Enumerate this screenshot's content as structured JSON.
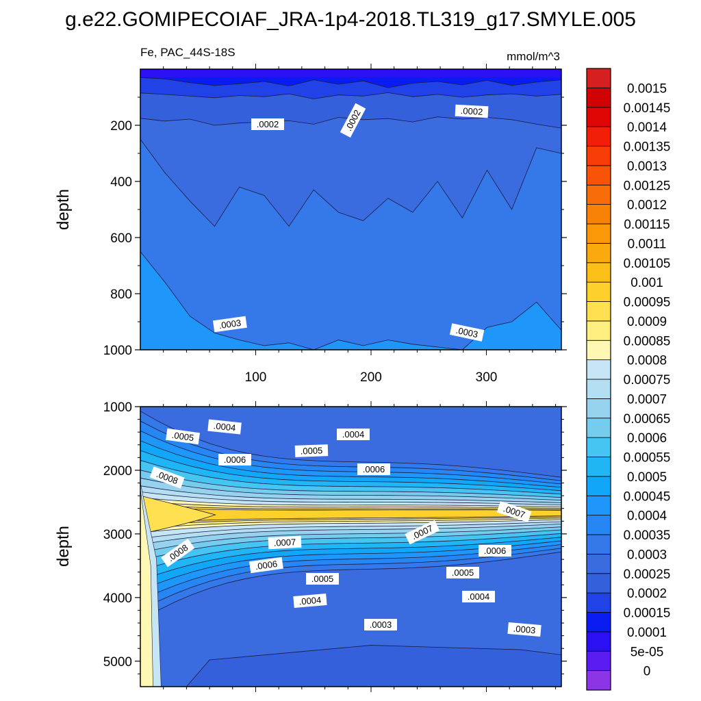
{
  "title": "g.e22.GOMIPECOIAF_JRA-1p4-2018.TL319_g17.SMYLE.005",
  "subtitle_left": "Fe, PAC_44S-18S",
  "subtitle_right": "mmol/m^3",
  "colors": {
    "levels": [
      "#8C35E6",
      "#5A1CF0",
      "#2A10F2",
      "#0A1CF2",
      "#2142E6",
      "#3560DC",
      "#3A6CE0",
      "#3478EA",
      "#2686F4",
      "#1E96FA",
      "#12A6F8",
      "#20B6F6",
      "#46C4F2",
      "#76CCEC",
      "#96D2EE",
      "#B4DEF2",
      "#C6E6F6",
      "#FEF8B4",
      "#FEEE80",
      "#FEE050",
      "#FED02C",
      "#FCBE18",
      "#FAAA0C",
      "#FA9808",
      "#F88208",
      "#F86C0A",
      "#F85408",
      "#F83C08",
      "#F21E08",
      "#E00606",
      "#D00202",
      "#D62020",
      "#E45858",
      "#FCB2B2"
    ]
  },
  "chart_data": [
    {
      "type": "heatmap",
      "panel": "top",
      "xlabel": "",
      "ylabel": "depth",
      "xticks": [
        100,
        200,
        300
      ],
      "yticks": [
        200,
        400,
        600,
        800,
        1000
      ],
      "xlim": [
        0,
        365
      ],
      "ylim": [
        0,
        1000
      ],
      "bands": [
        {
          "level": 0.0001,
          "depth": [
            30,
            35,
            48,
            58,
            52,
            44,
            60,
            38,
            54,
            42,
            66,
            50,
            44,
            56,
            40,
            58,
            46,
            38
          ]
        },
        {
          "level": 0.00015,
          "depth": [
            85,
            90,
            96,
            102,
            94,
            98,
            88,
            106,
            92,
            96,
            84,
            98,
            90,
            100,
            92,
            88,
            96,
            90
          ]
        },
        {
          "level": 0.0002,
          "depth": [
            175,
            185,
            178,
            200,
            192,
            188,
            184,
            196,
            172,
            180,
            176,
            188,
            170,
            178,
            172,
            180,
            196,
            210
          ]
        },
        {
          "level": 0.00025,
          "depth": [
            250,
            370,
            470,
            560,
            420,
            450,
            560,
            430,
            510,
            540,
            460,
            510,
            400,
            530,
            360,
            500,
            280,
            300
          ]
        },
        {
          "level": 0.0003,
          "depth": [
            650,
            760,
            880,
            940,
            965,
            985,
            975,
            1000,
            965,
            985,
            965,
            980,
            990,
            1000,
            920,
            900,
            830,
            930
          ]
        }
      ],
      "contour_labels": [
        ".0002",
        ".0002",
        ".0002",
        ".0003",
        ".0003"
      ]
    },
    {
      "type": "heatmap",
      "panel": "bottom",
      "xlabel": "",
      "ylabel": "depth",
      "yticks": [
        1000,
        2000,
        3000,
        4000,
        5000
      ],
      "xlim": [
        0,
        365
      ],
      "ylim": [
        1000,
        5400
      ],
      "contour_labels": [
        ".0004",
        ".0005",
        ".0004",
        ".0005",
        ".0006",
        ".0006",
        ".0008",
        ".0007",
        ".0007",
        ".0007",
        ".0008",
        ".0006",
        ".0006",
        ".0005",
        ".0005",
        ".0004",
        ".0004",
        ".0003",
        ".0003"
      ]
    },
    {
      "type": "colorbar",
      "labels": [
        "0.0015",
        "0.00145",
        "0.0014",
        "0.00135",
        "0.0013",
        "0.00125",
        "0.0012",
        "0.00115",
        "0.0011",
        "0.00105",
        "0.001",
        "0.00095",
        "0.0009",
        "0.00085",
        "0.0008",
        "0.00075",
        "0.0007",
        "0.00065",
        "0.0006",
        "0.00055",
        "0.0005",
        "0.00045",
        "0.0004",
        "0.00035",
        "0.0003",
        "0.00025",
        "0.0002",
        "0.00015",
        "0.0001",
        "5e-05",
        "0"
      ]
    }
  ]
}
